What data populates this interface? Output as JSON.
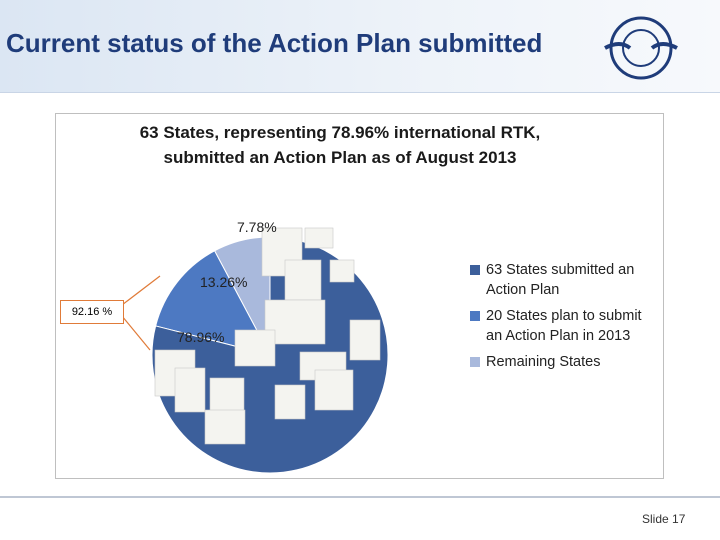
{
  "header": {
    "title": "Current status of the Action Plan submitted"
  },
  "chart_data": {
    "type": "pie",
    "title": "63 States, representing 78.96% international RTK, submitted an Action Plan as of August 2013",
    "categories": [
      "63 States submitted an Action Plan",
      "20 States plan to submit an Action Plan in 2013",
      "Remaining States"
    ],
    "values": [
      78.96,
      13.26,
      7.78
    ],
    "value_labels": [
      "78.96%",
      "13.26%",
      "7.78%"
    ],
    "colors": [
      "#3c5f9b",
      "#4d79c2",
      "#a9b9dc"
    ],
    "annotation": "92.16 %"
  },
  "footer": {
    "slide": "Slide 17"
  }
}
